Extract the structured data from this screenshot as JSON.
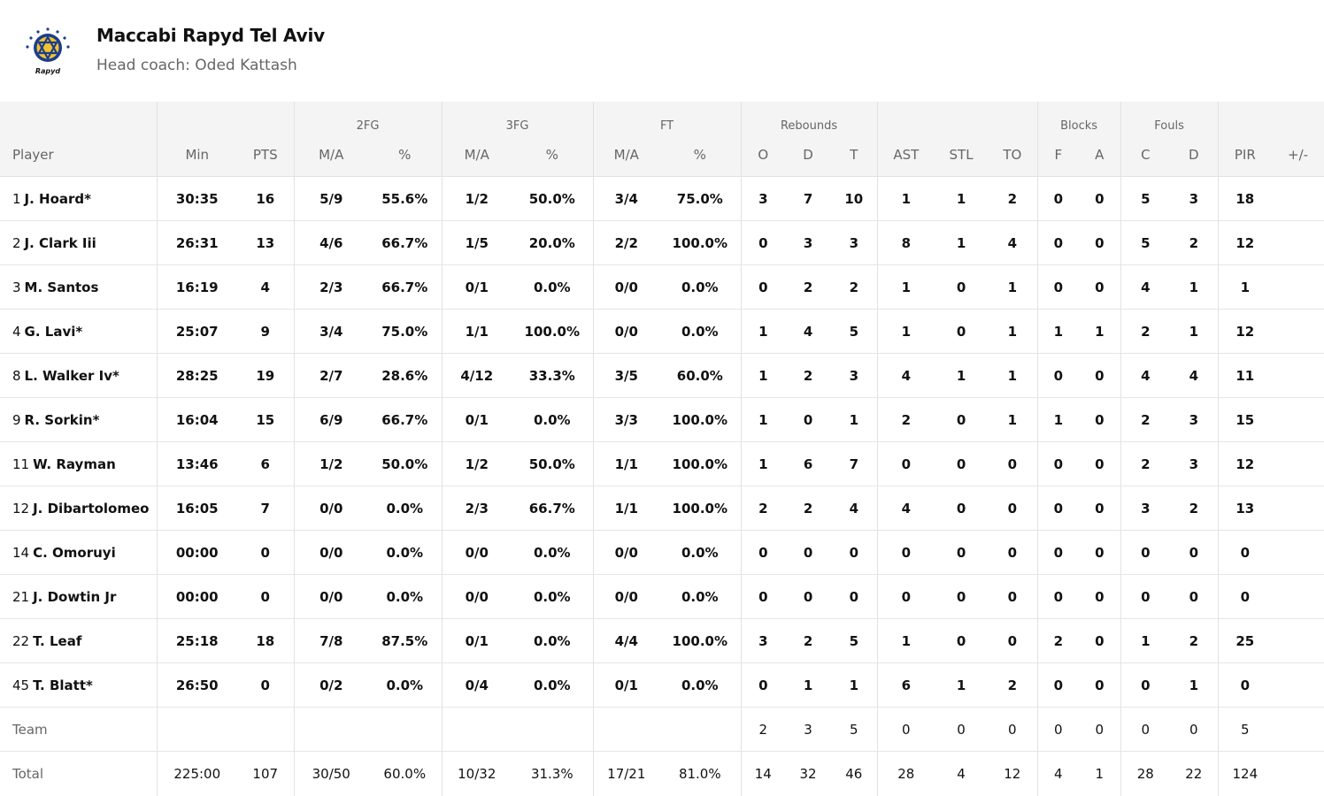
{
  "team": {
    "name": "Maccabi Rapyd Tel Aviv",
    "coach": "Head coach: Oded Kattash",
    "logo_text": "Rapyd",
    "logo_color": "#1a3e8c",
    "logo_accent": "#f2c230"
  },
  "groups": {
    "fg2": "2FG",
    "fg3": "3FG",
    "ft": "FT",
    "rebounds": "Rebounds",
    "blocks": "Blocks",
    "fouls": "Fouls"
  },
  "columns": {
    "player": "Player",
    "min": "Min",
    "pts": "PTS",
    "fg2_ma": "M/A",
    "fg2_pct": "%",
    "fg3_ma": "M/A",
    "fg3_pct": "%",
    "ft_ma": "M/A",
    "ft_pct": "%",
    "reb_o": "O",
    "reb_d": "D",
    "reb_t": "T",
    "ast": "AST",
    "stl": "STL",
    "to": "TO",
    "blk_f": "F",
    "blk_a": "A",
    "foul_c": "C",
    "foul_d": "D",
    "pir": "PIR",
    "pm": "+/-"
  },
  "rows": [
    {
      "num": "1",
      "name": "J. Hoard*",
      "min": "30:35",
      "pts": "16",
      "fg2_ma": "5/9",
      "fg2_pct": "55.6%",
      "fg3_ma": "1/2",
      "fg3_pct": "50.0%",
      "ft_ma": "3/4",
      "ft_pct": "75.0%",
      "reb_o": "3",
      "reb_d": "7",
      "reb_t": "10",
      "ast": "1",
      "stl": "1",
      "to": "2",
      "blk_f": "0",
      "blk_a": "0",
      "foul_c": "5",
      "foul_d": "3",
      "pir": "18",
      "pm": ""
    },
    {
      "num": "2",
      "name": "J. Clark Iii",
      "min": "26:31",
      "pts": "13",
      "fg2_ma": "4/6",
      "fg2_pct": "66.7%",
      "fg3_ma": "1/5",
      "fg3_pct": "20.0%",
      "ft_ma": "2/2",
      "ft_pct": "100.0%",
      "reb_o": "0",
      "reb_d": "3",
      "reb_t": "3",
      "ast": "8",
      "stl": "1",
      "to": "4",
      "blk_f": "0",
      "blk_a": "0",
      "foul_c": "5",
      "foul_d": "2",
      "pir": "12",
      "pm": ""
    },
    {
      "num": "3",
      "name": "M. Santos",
      "min": "16:19",
      "pts": "4",
      "fg2_ma": "2/3",
      "fg2_pct": "66.7%",
      "fg3_ma": "0/1",
      "fg3_pct": "0.0%",
      "ft_ma": "0/0",
      "ft_pct": "0.0%",
      "reb_o": "0",
      "reb_d": "2",
      "reb_t": "2",
      "ast": "1",
      "stl": "0",
      "to": "1",
      "blk_f": "0",
      "blk_a": "0",
      "foul_c": "4",
      "foul_d": "1",
      "pir": "1",
      "pm": ""
    },
    {
      "num": "4",
      "name": "G. Lavi*",
      "min": "25:07",
      "pts": "9",
      "fg2_ma": "3/4",
      "fg2_pct": "75.0%",
      "fg3_ma": "1/1",
      "fg3_pct": "100.0%",
      "ft_ma": "0/0",
      "ft_pct": "0.0%",
      "reb_o": "1",
      "reb_d": "4",
      "reb_t": "5",
      "ast": "1",
      "stl": "0",
      "to": "1",
      "blk_f": "1",
      "blk_a": "1",
      "foul_c": "2",
      "foul_d": "1",
      "pir": "12",
      "pm": ""
    },
    {
      "num": "8",
      "name": "L. Walker Iv*",
      "min": "28:25",
      "pts": "19",
      "fg2_ma": "2/7",
      "fg2_pct": "28.6%",
      "fg3_ma": "4/12",
      "fg3_pct": "33.3%",
      "ft_ma": "3/5",
      "ft_pct": "60.0%",
      "reb_o": "1",
      "reb_d": "2",
      "reb_t": "3",
      "ast": "4",
      "stl": "1",
      "to": "1",
      "blk_f": "0",
      "blk_a": "0",
      "foul_c": "4",
      "foul_d": "4",
      "pir": "11",
      "pm": ""
    },
    {
      "num": "9",
      "name": "R. Sorkin*",
      "min": "16:04",
      "pts": "15",
      "fg2_ma": "6/9",
      "fg2_pct": "66.7%",
      "fg3_ma": "0/1",
      "fg3_pct": "0.0%",
      "ft_ma": "3/3",
      "ft_pct": "100.0%",
      "reb_o": "1",
      "reb_d": "0",
      "reb_t": "1",
      "ast": "2",
      "stl": "0",
      "to": "1",
      "blk_f": "1",
      "blk_a": "0",
      "foul_c": "2",
      "foul_d": "3",
      "pir": "15",
      "pm": ""
    },
    {
      "num": "11",
      "name": "W. Rayman",
      "min": "13:46",
      "pts": "6",
      "fg2_ma": "1/2",
      "fg2_pct": "50.0%",
      "fg3_ma": "1/2",
      "fg3_pct": "50.0%",
      "ft_ma": "1/1",
      "ft_pct": "100.0%",
      "reb_o": "1",
      "reb_d": "6",
      "reb_t": "7",
      "ast": "0",
      "stl": "0",
      "to": "0",
      "blk_f": "0",
      "blk_a": "0",
      "foul_c": "2",
      "foul_d": "3",
      "pir": "12",
      "pm": ""
    },
    {
      "num": "12",
      "name": "J. Dibartolomeo",
      "min": "16:05",
      "pts": "7",
      "fg2_ma": "0/0",
      "fg2_pct": "0.0%",
      "fg3_ma": "2/3",
      "fg3_pct": "66.7%",
      "ft_ma": "1/1",
      "ft_pct": "100.0%",
      "reb_o": "2",
      "reb_d": "2",
      "reb_t": "4",
      "ast": "4",
      "stl": "0",
      "to": "0",
      "blk_f": "0",
      "blk_a": "0",
      "foul_c": "3",
      "foul_d": "2",
      "pir": "13",
      "pm": ""
    },
    {
      "num": "14",
      "name": "C. Omoruyi",
      "min": "00:00",
      "pts": "0",
      "fg2_ma": "0/0",
      "fg2_pct": "0.0%",
      "fg3_ma": "0/0",
      "fg3_pct": "0.0%",
      "ft_ma": "0/0",
      "ft_pct": "0.0%",
      "reb_o": "0",
      "reb_d": "0",
      "reb_t": "0",
      "ast": "0",
      "stl": "0",
      "to": "0",
      "blk_f": "0",
      "blk_a": "0",
      "foul_c": "0",
      "foul_d": "0",
      "pir": "0",
      "pm": ""
    },
    {
      "num": "21",
      "name": "J. Dowtin Jr",
      "min": "00:00",
      "pts": "0",
      "fg2_ma": "0/0",
      "fg2_pct": "0.0%",
      "fg3_ma": "0/0",
      "fg3_pct": "0.0%",
      "ft_ma": "0/0",
      "ft_pct": "0.0%",
      "reb_o": "0",
      "reb_d": "0",
      "reb_t": "0",
      "ast": "0",
      "stl": "0",
      "to": "0",
      "blk_f": "0",
      "blk_a": "0",
      "foul_c": "0",
      "foul_d": "0",
      "pir": "0",
      "pm": ""
    },
    {
      "num": "22",
      "name": "T. Leaf",
      "min": "25:18",
      "pts": "18",
      "fg2_ma": "7/8",
      "fg2_pct": "87.5%",
      "fg3_ma": "0/1",
      "fg3_pct": "0.0%",
      "ft_ma": "4/4",
      "ft_pct": "100.0%",
      "reb_o": "3",
      "reb_d": "2",
      "reb_t": "5",
      "ast": "1",
      "stl": "0",
      "to": "0",
      "blk_f": "2",
      "blk_a": "0",
      "foul_c": "1",
      "foul_d": "2",
      "pir": "25",
      "pm": ""
    },
    {
      "num": "45",
      "name": "T. Blatt*",
      "min": "26:50",
      "pts": "0",
      "fg2_ma": "0/2",
      "fg2_pct": "0.0%",
      "fg3_ma": "0/4",
      "fg3_pct": "0.0%",
      "ft_ma": "0/1",
      "ft_pct": "0.0%",
      "reb_o": "0",
      "reb_d": "1",
      "reb_t": "1",
      "ast": "6",
      "stl": "1",
      "to": "2",
      "blk_f": "0",
      "blk_a": "0",
      "foul_c": "0",
      "foul_d": "1",
      "pir": "0",
      "pm": ""
    }
  ],
  "team_row": {
    "name": "Team",
    "min": "",
    "pts": "",
    "fg2_ma": "",
    "fg2_pct": "",
    "fg3_ma": "",
    "fg3_pct": "",
    "ft_ma": "",
    "ft_pct": "",
    "reb_o": "2",
    "reb_d": "3",
    "reb_t": "5",
    "ast": "0",
    "stl": "0",
    "to": "0",
    "blk_f": "0",
    "blk_a": "0",
    "foul_c": "0",
    "foul_d": "0",
    "pir": "5",
    "pm": ""
  },
  "total_row": {
    "name": "Total",
    "min": "225:00",
    "pts": "107",
    "fg2_ma": "30/50",
    "fg2_pct": "60.0%",
    "fg3_ma": "10/32",
    "fg3_pct": "31.3%",
    "ft_ma": "17/21",
    "ft_pct": "81.0%",
    "reb_o": "14",
    "reb_d": "32",
    "reb_t": "46",
    "ast": "28",
    "stl": "4",
    "to": "12",
    "blk_f": "4",
    "blk_a": "1",
    "foul_c": "28",
    "foul_d": "22",
    "pir": "124",
    "pm": ""
  }
}
